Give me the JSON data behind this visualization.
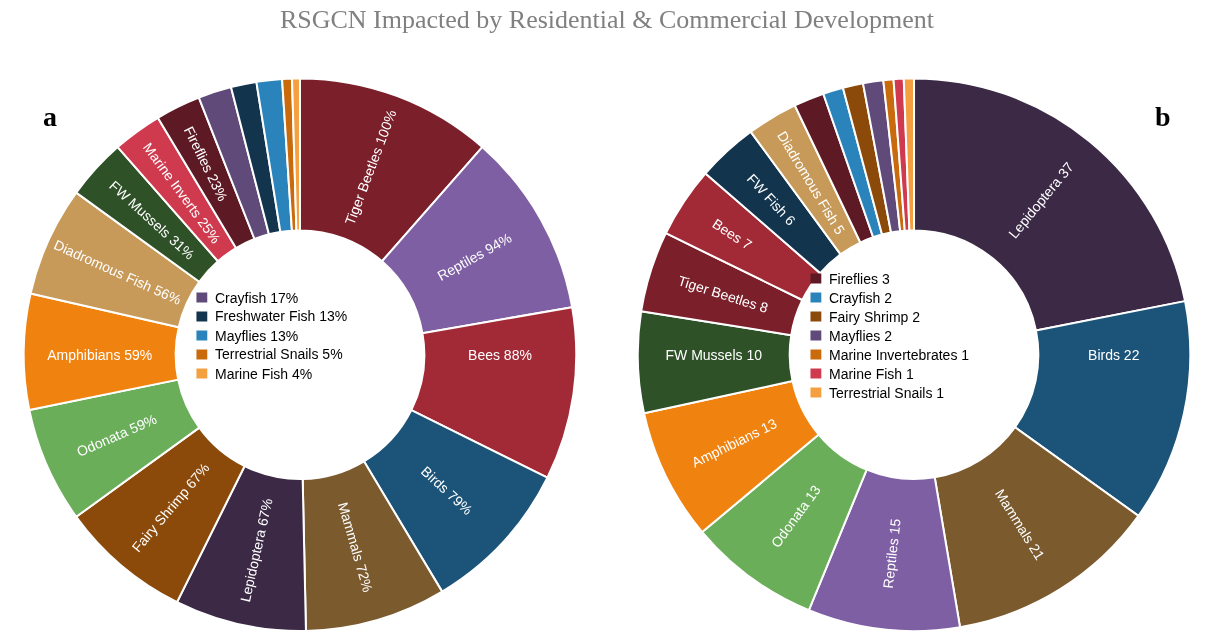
{
  "chart_data": [
    {
      "type": "donut",
      "title": "RSGCN Impacted by Residential & Commercial Development",
      "categories": [
        "Tiger Beetles",
        "Reptiles",
        "Bees",
        "Birds",
        "Mammals",
        "Lepidoptera",
        "Fairy Shrimp",
        "Odonata",
        "Amphibians",
        "Diadromous Fish",
        "FW Mussels",
        "Marine Inverts",
        "Fireflies",
        "Crayfish",
        "Freshwater Fish",
        "Mayflies",
        "Terrestrial Snails",
        "Marine Fish"
      ],
      "values": [
        100,
        94,
        88,
        79,
        72,
        67,
        67,
        59,
        59,
        56,
        31,
        25,
        23,
        17,
        13,
        13,
        5,
        4
      ],
      "value_labels": [
        "100%",
        "94%",
        "88%",
        "79%",
        "72%",
        "67%",
        "67%",
        "59%",
        "59%",
        "56%",
        "31%",
        "25%",
        "23%",
        "17%",
        "13%",
        "13%",
        "5%",
        "4%"
      ],
      "colors": [
        "#7b1f2b",
        "#7e5fa3",
        "#a12a36",
        "#1b5478",
        "#7b5a2e",
        "#3b2946",
        "#8b4a0a",
        "#6aae5a",
        "#f0820f",
        "#c89a5a",
        "#2e5128",
        "#d03a4f",
        "#5e1a24",
        "#5f4a7a",
        "#12344d",
        "#2a84bb",
        "#c96b0c",
        "#f5a040"
      ],
      "annotations": [
        "a"
      ],
      "legend": "center"
    },
    {
      "type": "donut",
      "categories": [
        "Lepidoptera",
        "Birds",
        "Mammals",
        "Reptiles",
        "Odonata",
        "Amphibians",
        "FW Mussels",
        "Tiger Beetles",
        "Bees",
        "FW Fish",
        "Diadromous Fish",
        "Fireflies",
        "Crayfish",
        "Fairy Shrimp",
        "Mayflies",
        "Marine Invertebrates",
        "Marine Fish",
        "Terrestrial Snails"
      ],
      "values": [
        37,
        22,
        21,
        15,
        13,
        13,
        10,
        8,
        7,
        6,
        5,
        3,
        2,
        2,
        2,
        1,
        1,
        1
      ],
      "value_labels": [
        "37",
        "22",
        "21",
        "15",
        "13",
        "13",
        "10",
        "8",
        "7",
        "6",
        "5",
        "3",
        "2",
        "2",
        "2",
        "1",
        "1",
        "1"
      ],
      "colors": [
        "#3b2946",
        "#1b5478",
        "#7b5a2e",
        "#7e5fa3",
        "#6aae5a",
        "#f0820f",
        "#2e5128",
        "#7b1f2b",
        "#a12a36",
        "#12344d",
        "#c89a5a",
        "#5e1a24",
        "#2a84bb",
        "#8b4a0a",
        "#5f4a7a",
        "#c96b0c",
        "#d03a4f",
        "#f5a040"
      ],
      "annotations": [
        "b"
      ],
      "legend": "center"
    }
  ]
}
